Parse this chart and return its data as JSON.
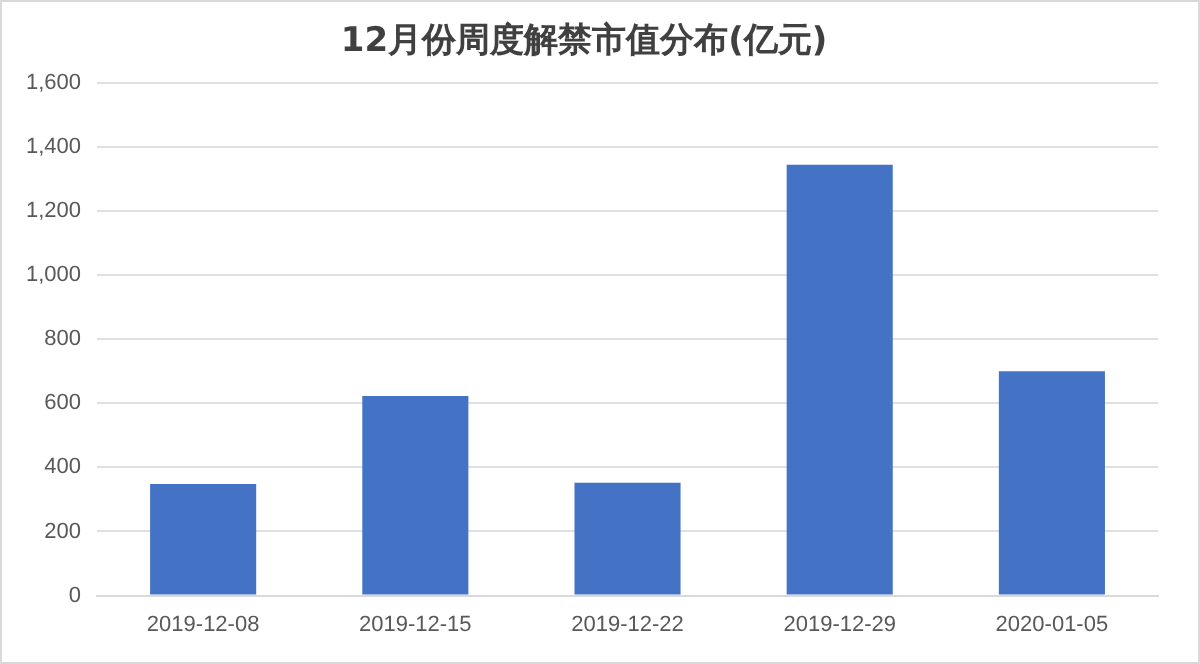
{
  "chart_data": {
    "type": "bar",
    "title": "12月份周度解禁市值分布(亿元)",
    "categories": [
      "2019-12-08",
      "2019-12-15",
      "2019-12-22",
      "2019-12-29",
      "2020-01-05"
    ],
    "values": [
      348,
      623,
      352,
      1344,
      700
    ],
    "color": "#4472c4",
    "ylim": [
      0,
      1600
    ],
    "yticks": [
      {
        "value": 0,
        "label": "0"
      },
      {
        "value": 200,
        "label": "200"
      },
      {
        "value": 400,
        "label": "400"
      },
      {
        "value": 600,
        "label": "600"
      },
      {
        "value": 800,
        "label": "800"
      },
      {
        "value": 1000,
        "label": "1,000"
      },
      {
        "value": 1200,
        "label": "1,200"
      },
      {
        "value": 1400,
        "label": "1,400"
      },
      {
        "value": 1600,
        "label": "1,600"
      }
    ],
    "grid": "y"
  }
}
